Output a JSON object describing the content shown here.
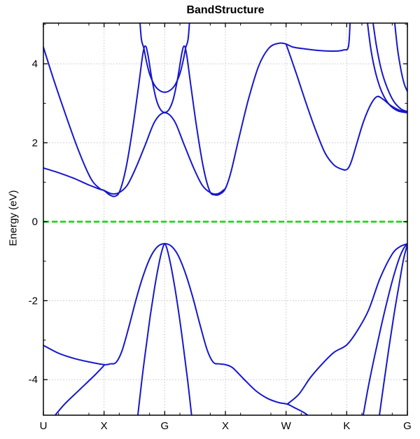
{
  "title": "BandStructure",
  "chart_data": {
    "type": "line",
    "title": "BandStructure",
    "xlabel": "",
    "ylabel": "Energy (eV)",
    "x_tick_labels": [
      "U",
      "X",
      "G",
      "X",
      "W",
      "K",
      "G"
    ],
    "x_tick_positions": [
      0,
      1,
      2,
      3,
      4,
      5,
      6
    ],
    "x_range": [
      0,
      6
    ],
    "y_range": [
      -4.9,
      5.03
    ],
    "y_major_ticks": [
      -4,
      -2,
      0,
      2,
      4
    ],
    "y_major_tick_labels": [
      "-4",
      "-2",
      "0",
      "2",
      "4"
    ],
    "y_minor_ticks": [
      -3,
      -1,
      1,
      3,
      5
    ],
    "grid": true,
    "legend": "none",
    "fermi_line": {
      "energy": 0,
      "style": "dashed",
      "color": "#00dd00",
      "width": 2.5
    },
    "band_color": "#1717cf",
    "band_width": 2,
    "grid_color": "#c4c4c4",
    "frame_color": "#000000",
    "bands": [
      {
        "name": "conduction-1",
        "points": [
          [
            0,
            4.42
          ],
          [
            0.18,
            3.55
          ],
          [
            0.38,
            2.65
          ],
          [
            0.58,
            1.8
          ],
          [
            0.78,
            1.1
          ],
          [
            0.92,
            0.85
          ],
          [
            1.0,
            0.79
          ],
          [
            1.09,
            0.68
          ],
          [
            1.18,
            0.645
          ],
          [
            1.26,
            0.78
          ],
          [
            1.36,
            1.35
          ],
          [
            1.47,
            2.35
          ],
          [
            1.57,
            3.45
          ],
          [
            1.64,
            4.25
          ],
          [
            1.68,
            4.45
          ],
          [
            1.72,
            4.25
          ],
          [
            1.79,
            3.6
          ],
          [
            1.86,
            3.1
          ],
          [
            1.93,
            2.84
          ],
          [
            2.0,
            2.77
          ],
          [
            2.07,
            2.84
          ],
          [
            2.14,
            3.1
          ],
          [
            2.21,
            3.6
          ],
          [
            2.28,
            4.25
          ],
          [
            2.32,
            4.45
          ],
          [
            2.36,
            4.25
          ],
          [
            2.43,
            3.45
          ],
          [
            2.53,
            2.35
          ],
          [
            2.64,
            1.35
          ],
          [
            2.74,
            0.78
          ],
          [
            2.82,
            0.68
          ],
          [
            2.91,
            0.7
          ],
          [
            3.0,
            0.84
          ],
          [
            3.09,
            1.25
          ],
          [
            3.22,
            2.1
          ],
          [
            3.38,
            3.1
          ],
          [
            3.55,
            3.95
          ],
          [
            3.72,
            4.4
          ],
          [
            3.88,
            4.52
          ],
          [
            4.0,
            4.5
          ],
          [
            4.12,
            4.42
          ],
          [
            4.35,
            4.37
          ],
          [
            4.6,
            4.33
          ],
          [
            4.8,
            4.32
          ],
          [
            4.95,
            4.35
          ],
          [
            5.03,
            4.45
          ],
          [
            5.06,
            5.25
          ]
        ]
      },
      {
        "name": "conduction-2",
        "points": [
          [
            0,
            1.36
          ],
          [
            0.25,
            1.24
          ],
          [
            0.5,
            1.1
          ],
          [
            0.75,
            0.93
          ],
          [
            0.92,
            0.83
          ],
          [
            1.0,
            0.79
          ],
          [
            1.12,
            0.71
          ],
          [
            1.24,
            0.73
          ],
          [
            1.38,
            0.92
          ],
          [
            1.52,
            1.35
          ],
          [
            1.68,
            1.95
          ],
          [
            1.84,
            2.55
          ],
          [
            2.0,
            2.76
          ],
          [
            2.16,
            2.55
          ],
          [
            2.32,
            1.95
          ],
          [
            2.48,
            1.35
          ],
          [
            2.62,
            0.92
          ],
          [
            2.76,
            0.73
          ],
          [
            2.88,
            0.71
          ],
          [
            3.0,
            0.84
          ]
        ]
      },
      {
        "name": "conduction-3",
        "points": [
          [
            1.585,
            5.2
          ],
          [
            1.615,
            4.62
          ],
          [
            1.655,
            4.4
          ],
          [
            1.7,
            4.05
          ],
          [
            1.76,
            3.7
          ],
          [
            1.86,
            3.4
          ],
          [
            2.0,
            3.28
          ],
          [
            2.14,
            3.4
          ],
          [
            2.24,
            3.7
          ],
          [
            2.3,
            4.05
          ],
          [
            2.345,
            4.4
          ],
          [
            2.385,
            4.62
          ],
          [
            2.415,
            5.2
          ]
        ]
      },
      {
        "name": "conduction-4",
        "points": [
          [
            4.0,
            4.5
          ],
          [
            4.08,
            4.15
          ],
          [
            4.18,
            3.7
          ],
          [
            4.32,
            3.05
          ],
          [
            4.48,
            2.35
          ],
          [
            4.64,
            1.75
          ],
          [
            4.78,
            1.45
          ],
          [
            4.9,
            1.34
          ],
          [
            5.0,
            1.32
          ],
          [
            5.07,
            1.5
          ],
          [
            5.16,
            1.95
          ],
          [
            5.28,
            2.55
          ],
          [
            5.4,
            2.98
          ],
          [
            5.5,
            3.17
          ],
          [
            5.6,
            3.1
          ],
          [
            5.72,
            2.95
          ],
          [
            5.86,
            2.83
          ],
          [
            6.0,
            2.77
          ]
        ]
      },
      {
        "name": "conduction-5",
        "points": [
          [
            5.33,
            5.2
          ],
          [
            5.4,
            4.35
          ],
          [
            5.48,
            3.75
          ],
          [
            5.58,
            3.28
          ],
          [
            5.7,
            2.97
          ],
          [
            5.84,
            2.81
          ],
          [
            6.0,
            2.76
          ]
        ]
      },
      {
        "name": "conduction-6",
        "points": [
          [
            5.42,
            5.2
          ],
          [
            5.49,
            4.45
          ],
          [
            5.57,
            3.85
          ],
          [
            5.66,
            3.42
          ],
          [
            5.77,
            3.06
          ],
          [
            5.89,
            2.86
          ],
          [
            6.0,
            2.79
          ]
        ]
      },
      {
        "name": "conduction-7",
        "points": [
          [
            5.78,
            5.2
          ],
          [
            5.84,
            4.35
          ],
          [
            5.9,
            3.8
          ],
          [
            5.95,
            3.48
          ],
          [
            6.0,
            3.3
          ]
        ]
      },
      {
        "name": "valence-1",
        "points": [
          [
            0,
            -3.13
          ],
          [
            0.25,
            -3.33
          ],
          [
            0.5,
            -3.46
          ],
          [
            0.75,
            -3.55
          ],
          [
            1.0,
            -3.62
          ],
          [
            1.1,
            -3.6
          ],
          [
            1.2,
            -3.56
          ],
          [
            1.3,
            -3.25
          ],
          [
            1.42,
            -2.6
          ],
          [
            1.54,
            -1.9
          ],
          [
            1.66,
            -1.3
          ],
          [
            1.78,
            -0.85
          ],
          [
            1.89,
            -0.62
          ],
          [
            2.0,
            -0.555
          ],
          [
            2.11,
            -0.62
          ],
          [
            2.22,
            -0.85
          ],
          [
            2.34,
            -1.3
          ],
          [
            2.46,
            -1.9
          ],
          [
            2.58,
            -2.6
          ],
          [
            2.7,
            -3.25
          ],
          [
            2.8,
            -3.56
          ],
          [
            2.9,
            -3.6
          ],
          [
            3.0,
            -3.62
          ],
          [
            3.12,
            -3.7
          ],
          [
            3.3,
            -3.98
          ],
          [
            3.5,
            -4.28
          ],
          [
            3.7,
            -4.48
          ],
          [
            3.88,
            -4.58
          ],
          [
            4.02,
            -4.62
          ],
          [
            4.15,
            -4.72
          ],
          [
            4.3,
            -4.84
          ],
          [
            4.44,
            -5.0
          ]
        ]
      },
      {
        "name": "valence-2",
        "points": [
          [
            0.14,
            -5.0
          ],
          [
            0.35,
            -4.62
          ],
          [
            0.6,
            -4.25
          ],
          [
            0.85,
            -3.88
          ],
          [
            1.0,
            -3.64
          ]
        ]
      },
      {
        "name": "valence-3",
        "points": [
          [
            1.55,
            -5.0
          ],
          [
            1.62,
            -4.05
          ],
          [
            1.69,
            -3.2
          ],
          [
            1.76,
            -2.4
          ],
          [
            1.83,
            -1.7
          ],
          [
            1.9,
            -1.1
          ],
          [
            1.96,
            -0.7
          ],
          [
            2.0,
            -0.57
          ],
          [
            2.04,
            -0.7
          ],
          [
            2.1,
            -1.1
          ],
          [
            2.17,
            -1.7
          ],
          [
            2.24,
            -2.4
          ],
          [
            2.31,
            -3.2
          ],
          [
            2.38,
            -4.05
          ],
          [
            2.45,
            -5.0
          ]
        ]
      },
      {
        "name": "valence-4",
        "points": [
          [
            4.02,
            -4.62
          ],
          [
            4.21,
            -4.37
          ],
          [
            4.4,
            -3.95
          ],
          [
            4.59,
            -3.61
          ],
          [
            4.79,
            -3.31
          ],
          [
            5.0,
            -3.12
          ],
          [
            5.17,
            -2.77
          ],
          [
            5.36,
            -2.24
          ],
          [
            5.55,
            -1.43
          ],
          [
            5.75,
            -0.82
          ],
          [
            5.88,
            -0.63
          ],
          [
            6.0,
            -0.56
          ]
        ]
      },
      {
        "name": "valence-5",
        "points": [
          [
            5.26,
            -5.0
          ],
          [
            5.36,
            -4.15
          ],
          [
            5.46,
            -3.4
          ],
          [
            5.56,
            -2.7
          ],
          [
            5.66,
            -2.05
          ],
          [
            5.76,
            -1.45
          ],
          [
            5.86,
            -0.95
          ],
          [
            5.94,
            -0.67
          ],
          [
            6.0,
            -0.56
          ]
        ]
      },
      {
        "name": "valence-6",
        "points": [
          [
            5.53,
            -5.0
          ],
          [
            5.62,
            -4.0
          ],
          [
            5.7,
            -3.15
          ],
          [
            5.78,
            -2.35
          ],
          [
            5.86,
            -1.62
          ],
          [
            5.93,
            -1.0
          ],
          [
            5.98,
            -0.68
          ],
          [
            6.0,
            -0.6
          ]
        ]
      }
    ]
  }
}
